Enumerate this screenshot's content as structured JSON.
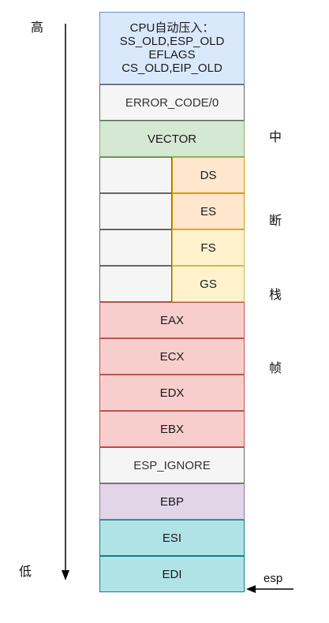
{
  "labels": {
    "high": "高",
    "low": "低",
    "frame_chars": [
      "中",
      "断",
      "栈",
      "帧"
    ],
    "esp": "esp"
  },
  "cpu_box": {
    "lines": [
      "CPU自动压入：",
      "SS_OLD,ESP_OLD",
      "EFLAGS",
      "CS_OLD,EIP_OLD"
    ]
  },
  "stack": {
    "error_code": "ERROR_CODE/0",
    "vector": "VECTOR",
    "seg_regs": [
      "DS",
      "ES",
      "FS",
      "GS"
    ],
    "gp_regs": [
      "EAX",
      "ECX",
      "EDX",
      "EBX"
    ],
    "esp_ignore": "ESP_IGNORE",
    "ebp": "EBP",
    "esi": "ESI",
    "edi": "EDI"
  }
}
